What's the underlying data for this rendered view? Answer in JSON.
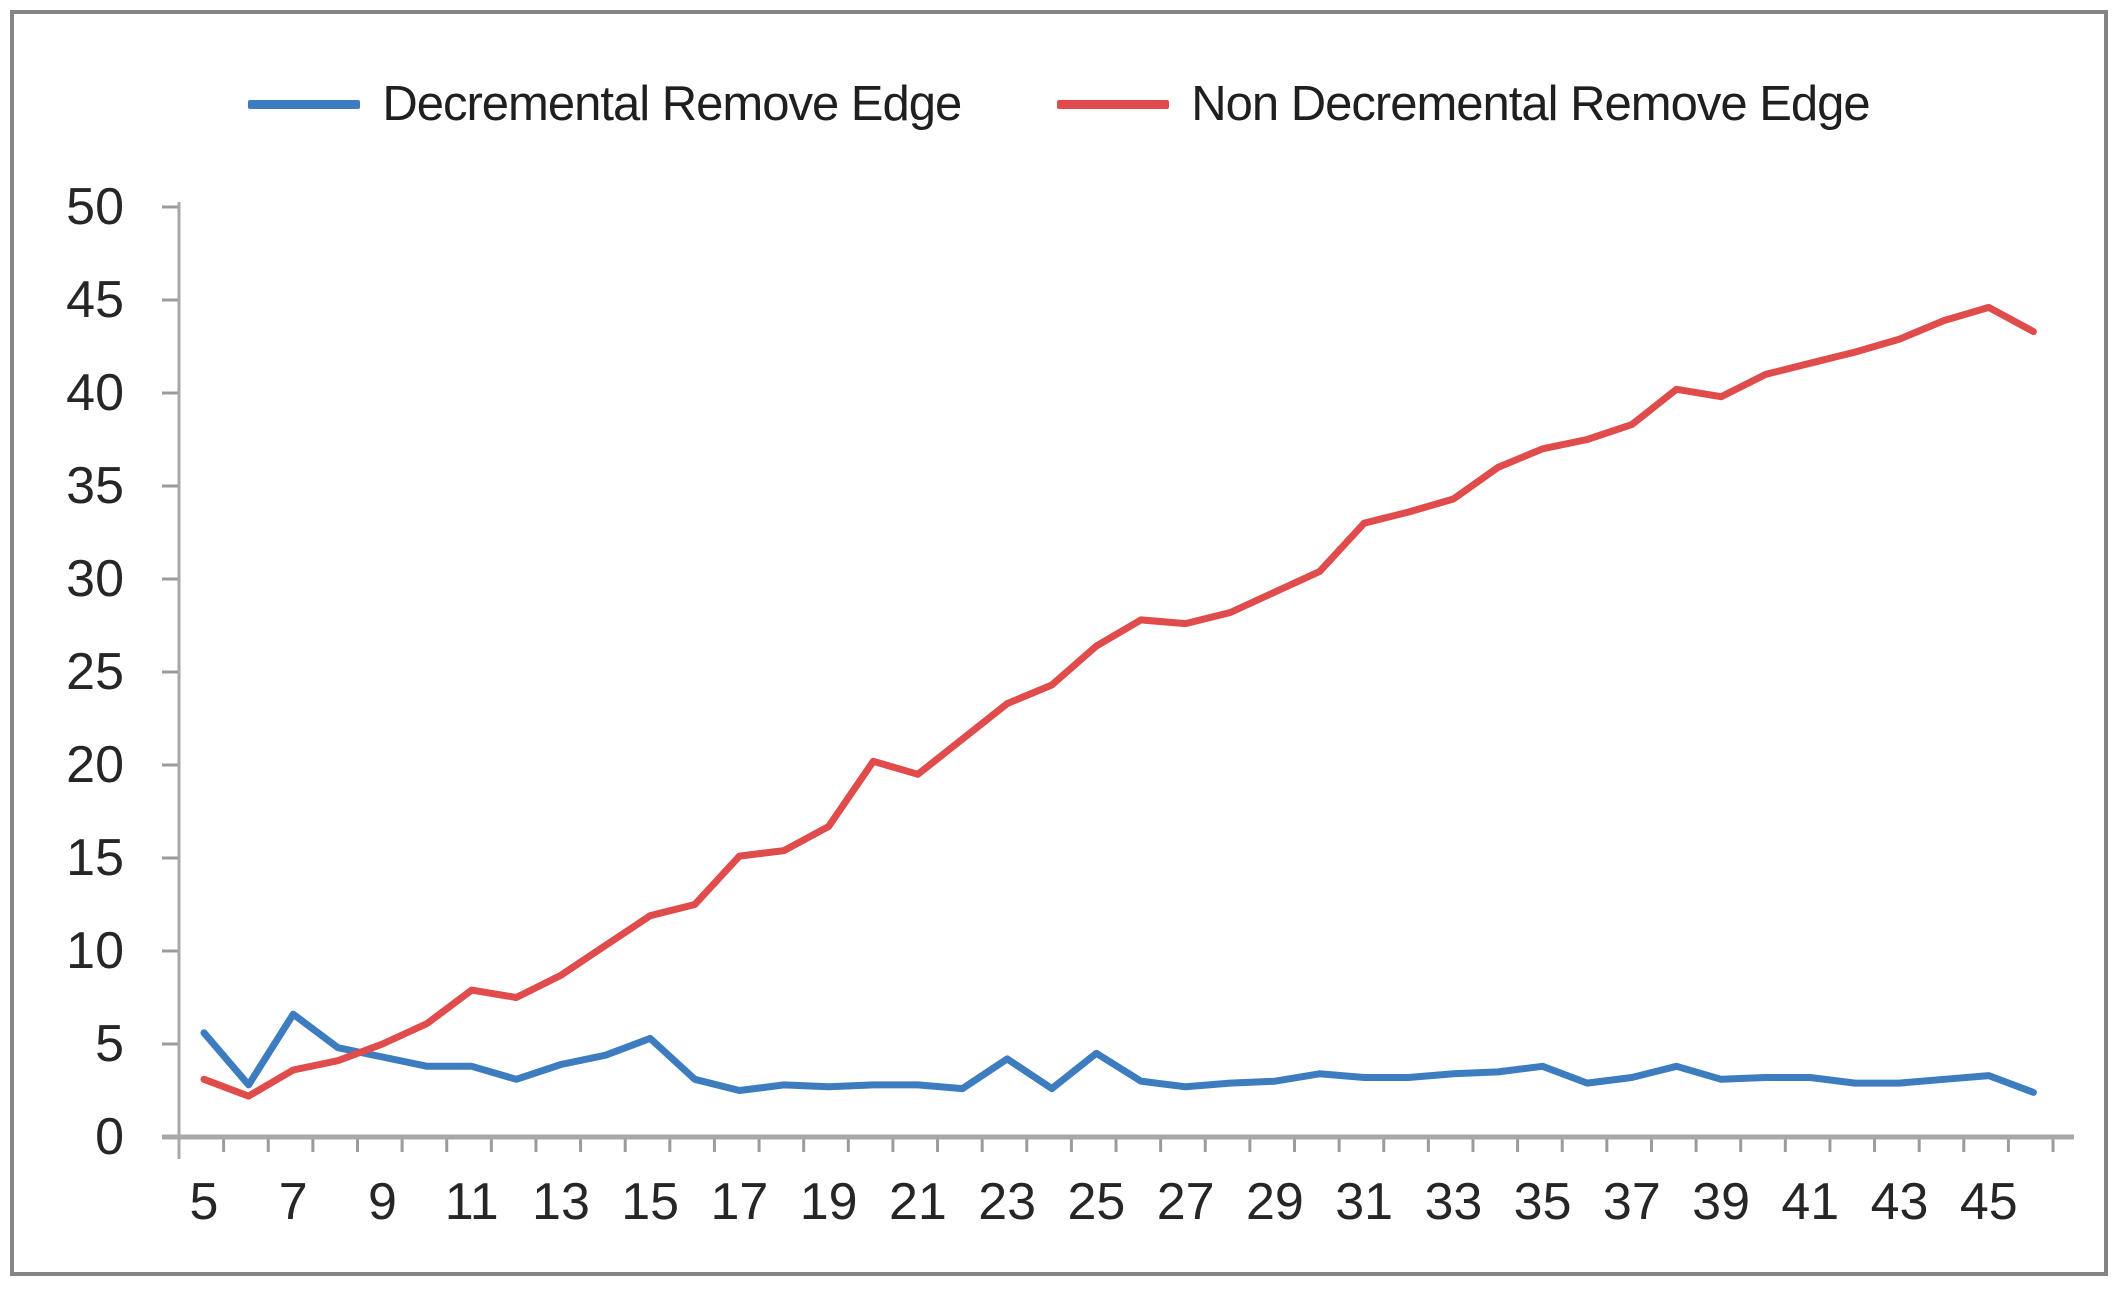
{
  "window": {
    "background": "#ffffff",
    "frame_border_color": "#848484"
  },
  "legend": {
    "items": [
      {
        "label": "Decremental Remove Edge",
        "color": "#3D7DBF"
      },
      {
        "label": "Non Decremental Remove Edge",
        "color": "#E04B4B"
      }
    ]
  },
  "chart_data": {
    "type": "line",
    "title": "",
    "xlabel": "",
    "ylabel": "",
    "x": [
      5,
      6,
      7,
      8,
      9,
      10,
      11,
      12,
      13,
      14,
      15,
      16,
      17,
      18,
      19,
      20,
      21,
      22,
      23,
      24,
      25,
      26,
      27,
      28,
      29,
      30,
      31,
      32,
      33,
      34,
      35,
      36,
      37,
      38,
      39,
      40,
      41,
      42,
      43,
      44,
      45,
      46
    ],
    "x_tick_labels": [
      "5",
      "7",
      "9",
      "11",
      "13",
      "15",
      "17",
      "19",
      "21",
      "23",
      "25",
      "27",
      "29",
      "31",
      "33",
      "35",
      "37",
      "39",
      "41",
      "43",
      "45"
    ],
    "y_ticks": [
      0,
      5,
      10,
      15,
      20,
      25,
      30,
      35,
      40,
      45,
      50
    ],
    "ylim": [
      0,
      50
    ],
    "grid": false,
    "legend_position": "top",
    "axis_color": "#A8A8A8",
    "tick_color": "#9B9B9B",
    "label_color": "#262626",
    "series": [
      {
        "name": "Decremental Remove Edge",
        "color": "#3D7DBF",
        "values": [
          5.6,
          2.8,
          6.6,
          4.8,
          4.3,
          3.8,
          3.8,
          3.1,
          3.9,
          4.4,
          5.3,
          3.1,
          2.5,
          2.8,
          2.7,
          2.8,
          2.8,
          2.6,
          4.2,
          2.6,
          4.5,
          3.0,
          2.7,
          2.9,
          3.0,
          3.4,
          3.2,
          3.2,
          3.4,
          3.5,
          3.8,
          2.9,
          3.2,
          3.8,
          3.1,
          3.2,
          3.2,
          2.9,
          2.9,
          3.1,
          3.3,
          2.4
        ]
      },
      {
        "name": "Non Decremental Remove Edge",
        "color": "#E04B4B",
        "values": [
          3.1,
          2.2,
          3.6,
          4.1,
          5.0,
          6.1,
          7.9,
          7.5,
          8.7,
          10.3,
          11.9,
          12.5,
          15.1,
          15.4,
          16.7,
          20.2,
          19.5,
          21.4,
          23.3,
          24.3,
          26.4,
          27.8,
          27.6,
          28.2,
          29.3,
          30.4,
          33.0,
          33.6,
          34.3,
          36.0,
          37.0,
          37.5,
          38.3,
          40.2,
          39.8,
          41.0,
          41.6,
          42.2,
          42.9,
          43.9,
          44.6,
          43.3
        ]
      }
    ]
  }
}
